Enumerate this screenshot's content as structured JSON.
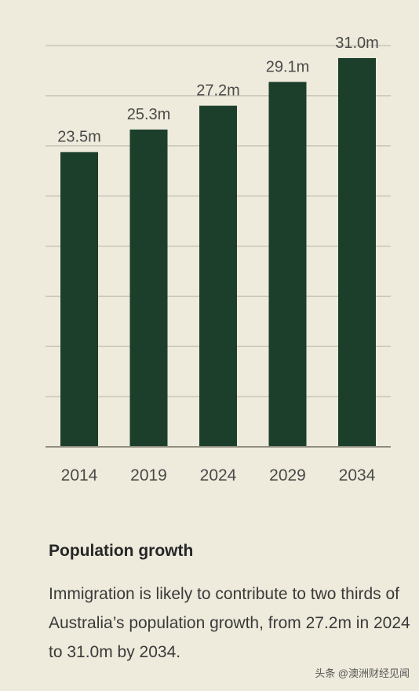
{
  "chart_data": {
    "type": "bar",
    "categories": [
      "2014",
      "2019",
      "2024",
      "2029",
      "2034"
    ],
    "values": [
      23.5,
      25.3,
      27.2,
      29.1,
      31.0
    ],
    "value_labels": [
      "23.5m",
      "25.3m",
      "27.2m",
      "29.1m",
      "31.0m"
    ],
    "ylim": [
      0,
      32
    ],
    "grid": true,
    "bar_color": "#1c3f2c",
    "grid_color": "#c9c6b8",
    "title": "",
    "xlabel": "",
    "ylabel": ""
  },
  "caption": {
    "title": "Population growth",
    "body": "Immigration is likely to contribute to two thirds of Australia’s population growth, from 27.2m in 2024 to 31.0m by 2034."
  },
  "watermark": "头条 @澳洲财经见闻"
}
